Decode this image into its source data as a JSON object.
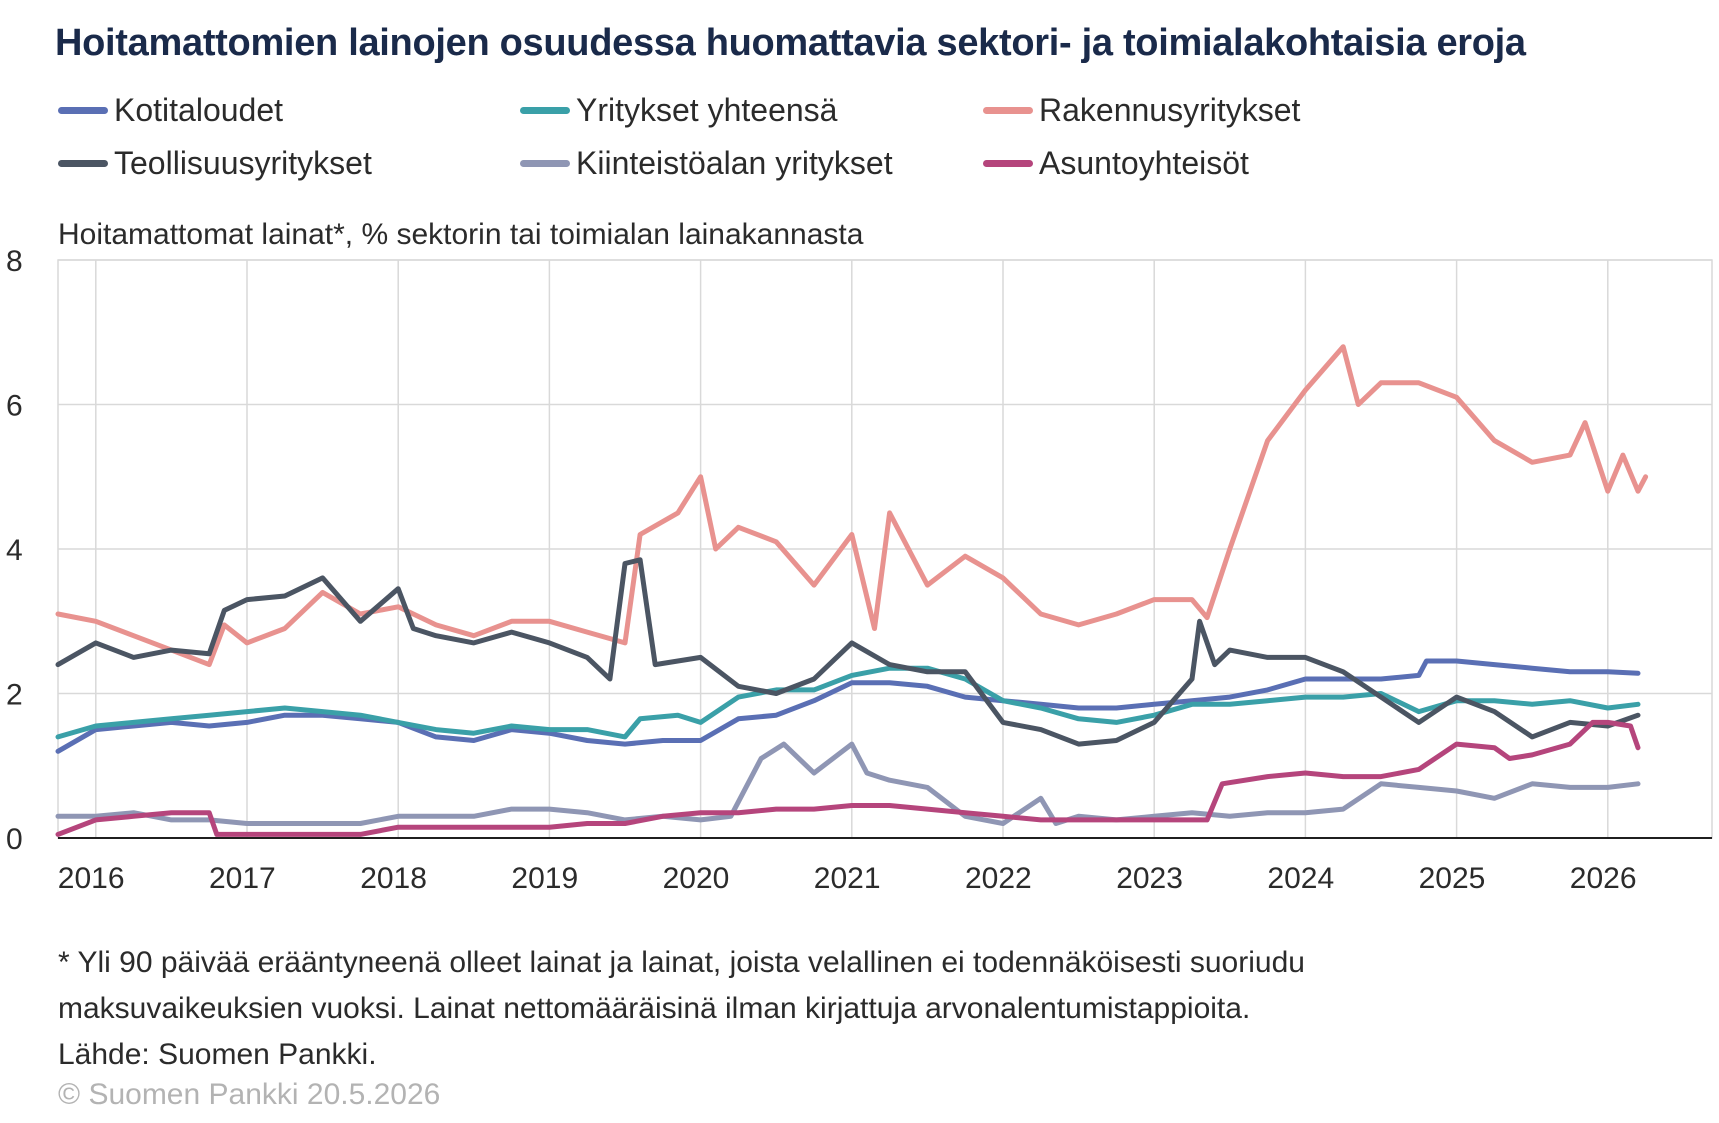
{
  "title": "Hoitamattomien lainojen osuudessa huomattavia sektori- ja toimialakohtaisia eroja",
  "ylabel": "Hoitamattomat lainat*, % sektorin tai toimialan lainakannasta",
  "footnote": {
    "line1": "* Yli 90 päivää erääntyneenä olleet lainat ja lainat, joista velallinen ei todennäköisesti suoriudu",
    "line2": "maksuvaikeuksien vuoksi. Lainat nettomääräisinä ilman kirjattuja arvonalentumistappioita.",
    "line3": "Lähde: Suomen Pankki."
  },
  "copyright": "© Suomen Pankki 20.5.2026",
  "chart_data": {
    "type": "line",
    "title": "Hoitamattomien lainojen osuudessa huomattavia sektori- ja toimialakohtaisia eroja",
    "ylabel": "Hoitamattomat lainat*, % sektorin tai toimialan lainakannasta",
    "xlabel": "",
    "ylim": [
      0,
      8
    ],
    "yticks": [
      "0",
      "2",
      "4",
      "6",
      "8"
    ],
    "xticks": [
      "2016",
      "2017",
      "2018",
      "2019",
      "2020",
      "2021",
      "2022",
      "2023",
      "2024",
      "2025",
      "2026"
    ],
    "grid": true,
    "legend_position": "top",
    "series": [
      {
        "name": "Kotitaloudet",
        "color": "#5a6fb4",
        "points": [
          [
            2015.75,
            1.2
          ],
          [
            2016.0,
            1.5
          ],
          [
            2016.25,
            1.55
          ],
          [
            2016.5,
            1.6
          ],
          [
            2016.75,
            1.55
          ],
          [
            2017.0,
            1.6
          ],
          [
            2017.25,
            1.7
          ],
          [
            2017.5,
            1.7
          ],
          [
            2017.75,
            1.65
          ],
          [
            2018.0,
            1.6
          ],
          [
            2018.25,
            1.4
          ],
          [
            2018.5,
            1.35
          ],
          [
            2018.75,
            1.5
          ],
          [
            2019.0,
            1.45
          ],
          [
            2019.25,
            1.35
          ],
          [
            2019.5,
            1.3
          ],
          [
            2019.75,
            1.35
          ],
          [
            2020.0,
            1.35
          ],
          [
            2020.25,
            1.65
          ],
          [
            2020.5,
            1.7
          ],
          [
            2020.75,
            1.9
          ],
          [
            2021.0,
            2.15
          ],
          [
            2021.25,
            2.15
          ],
          [
            2021.5,
            2.1
          ],
          [
            2021.75,
            1.95
          ],
          [
            2022.0,
            1.9
          ],
          [
            2022.25,
            1.85
          ],
          [
            2022.5,
            1.8
          ],
          [
            2022.75,
            1.8
          ],
          [
            2023.0,
            1.85
          ],
          [
            2023.25,
            1.9
          ],
          [
            2023.5,
            1.95
          ],
          [
            2023.75,
            2.05
          ],
          [
            2024.0,
            2.2
          ],
          [
            2024.25,
            2.2
          ],
          [
            2024.5,
            2.2
          ],
          [
            2024.75,
            2.25
          ],
          [
            2024.8,
            2.45
          ],
          [
            2025.0,
            2.45
          ],
          [
            2025.25,
            2.4
          ],
          [
            2025.5,
            2.35
          ],
          [
            2025.75,
            2.3
          ],
          [
            2026.0,
            2.3
          ],
          [
            2026.2,
            2.28
          ]
        ]
      },
      {
        "name": "Yritykset yhteensä",
        "color": "#3aa0a8",
        "points": [
          [
            2015.75,
            1.4
          ],
          [
            2016.0,
            1.55
          ],
          [
            2016.25,
            1.6
          ],
          [
            2016.5,
            1.65
          ],
          [
            2016.75,
            1.7
          ],
          [
            2017.0,
            1.75
          ],
          [
            2017.25,
            1.8
          ],
          [
            2017.5,
            1.75
          ],
          [
            2017.75,
            1.7
          ],
          [
            2018.0,
            1.6
          ],
          [
            2018.25,
            1.5
          ],
          [
            2018.5,
            1.45
          ],
          [
            2018.75,
            1.55
          ],
          [
            2019.0,
            1.5
          ],
          [
            2019.25,
            1.5
          ],
          [
            2019.5,
            1.4
          ],
          [
            2019.6,
            1.65
          ],
          [
            2019.85,
            1.7
          ],
          [
            2020.0,
            1.6
          ],
          [
            2020.25,
            1.95
          ],
          [
            2020.5,
            2.05
          ],
          [
            2020.75,
            2.05
          ],
          [
            2021.0,
            2.25
          ],
          [
            2021.25,
            2.35
          ],
          [
            2021.5,
            2.35
          ],
          [
            2021.75,
            2.2
          ],
          [
            2022.0,
            1.9
          ],
          [
            2022.25,
            1.8
          ],
          [
            2022.5,
            1.65
          ],
          [
            2022.75,
            1.6
          ],
          [
            2023.0,
            1.7
          ],
          [
            2023.25,
            1.85
          ],
          [
            2023.5,
            1.85
          ],
          [
            2023.75,
            1.9
          ],
          [
            2024.0,
            1.95
          ],
          [
            2024.25,
            1.95
          ],
          [
            2024.5,
            2.0
          ],
          [
            2024.75,
            1.75
          ],
          [
            2025.0,
            1.9
          ],
          [
            2025.25,
            1.9
          ],
          [
            2025.5,
            1.85
          ],
          [
            2025.75,
            1.9
          ],
          [
            2026.0,
            1.8
          ],
          [
            2026.2,
            1.85
          ]
        ]
      },
      {
        "name": "Rakennusyritykset",
        "color": "#e8928f",
        "points": [
          [
            2015.75,
            3.1
          ],
          [
            2016.0,
            3.0
          ],
          [
            2016.25,
            2.8
          ],
          [
            2016.5,
            2.6
          ],
          [
            2016.75,
            2.4
          ],
          [
            2016.85,
            2.95
          ],
          [
            2017.0,
            2.7
          ],
          [
            2017.25,
            2.9
          ],
          [
            2017.5,
            3.4
          ],
          [
            2017.75,
            3.1
          ],
          [
            2018.0,
            3.2
          ],
          [
            2018.25,
            2.95
          ],
          [
            2018.5,
            2.8
          ],
          [
            2018.75,
            3.0
          ],
          [
            2019.0,
            3.0
          ],
          [
            2019.25,
            2.85
          ],
          [
            2019.5,
            2.7
          ],
          [
            2019.6,
            4.2
          ],
          [
            2019.85,
            4.5
          ],
          [
            2020.0,
            5.0
          ],
          [
            2020.1,
            4.0
          ],
          [
            2020.25,
            4.3
          ],
          [
            2020.5,
            4.1
          ],
          [
            2020.75,
            3.5
          ],
          [
            2021.0,
            4.2
          ],
          [
            2021.15,
            2.9
          ],
          [
            2021.25,
            4.5
          ],
          [
            2021.5,
            3.5
          ],
          [
            2021.75,
            3.9
          ],
          [
            2022.0,
            3.6
          ],
          [
            2022.25,
            3.1
          ],
          [
            2022.5,
            2.95
          ],
          [
            2022.75,
            3.1
          ],
          [
            2023.0,
            3.3
          ],
          [
            2023.25,
            3.3
          ],
          [
            2023.35,
            3.05
          ],
          [
            2023.5,
            4.0
          ],
          [
            2023.75,
            5.5
          ],
          [
            2024.0,
            6.2
          ],
          [
            2024.25,
            6.8
          ],
          [
            2024.35,
            6.0
          ],
          [
            2024.5,
            6.3
          ],
          [
            2024.75,
            6.3
          ],
          [
            2025.0,
            6.1
          ],
          [
            2025.25,
            5.5
          ],
          [
            2025.5,
            5.2
          ],
          [
            2025.75,
            5.3
          ],
          [
            2025.85,
            5.75
          ],
          [
            2026.0,
            4.8
          ],
          [
            2026.1,
            5.3
          ],
          [
            2026.2,
            4.8
          ],
          [
            2026.25,
            5.0
          ]
        ]
      },
      {
        "name": "Teollisuusyritykset",
        "color": "#4b5563",
        "points": [
          [
            2015.75,
            2.4
          ],
          [
            2016.0,
            2.7
          ],
          [
            2016.25,
            2.5
          ],
          [
            2016.5,
            2.6
          ],
          [
            2016.75,
            2.55
          ],
          [
            2016.85,
            3.15
          ],
          [
            2017.0,
            3.3
          ],
          [
            2017.25,
            3.35
          ],
          [
            2017.5,
            3.6
          ],
          [
            2017.75,
            3.0
          ],
          [
            2018.0,
            3.45
          ],
          [
            2018.1,
            2.9
          ],
          [
            2018.25,
            2.8
          ],
          [
            2018.5,
            2.7
          ],
          [
            2018.75,
            2.85
          ],
          [
            2019.0,
            2.7
          ],
          [
            2019.25,
            2.5
          ],
          [
            2019.4,
            2.2
          ],
          [
            2019.5,
            3.8
          ],
          [
            2019.6,
            3.85
          ],
          [
            2019.7,
            2.4
          ],
          [
            2019.85,
            2.45
          ],
          [
            2020.0,
            2.5
          ],
          [
            2020.25,
            2.1
          ],
          [
            2020.5,
            2.0
          ],
          [
            2020.75,
            2.2
          ],
          [
            2021.0,
            2.7
          ],
          [
            2021.25,
            2.4
          ],
          [
            2021.5,
            2.3
          ],
          [
            2021.75,
            2.3
          ],
          [
            2022.0,
            1.6
          ],
          [
            2022.25,
            1.5
          ],
          [
            2022.5,
            1.3
          ],
          [
            2022.75,
            1.35
          ],
          [
            2023.0,
            1.6
          ],
          [
            2023.25,
            2.2
          ],
          [
            2023.3,
            3.0
          ],
          [
            2023.4,
            2.4
          ],
          [
            2023.5,
            2.6
          ],
          [
            2023.75,
            2.5
          ],
          [
            2024.0,
            2.5
          ],
          [
            2024.25,
            2.3
          ],
          [
            2024.5,
            1.95
          ],
          [
            2024.75,
            1.6
          ],
          [
            2025.0,
            1.95
          ],
          [
            2025.25,
            1.75
          ],
          [
            2025.5,
            1.4
          ],
          [
            2025.75,
            1.6
          ],
          [
            2026.0,
            1.55
          ],
          [
            2026.2,
            1.7
          ]
        ]
      },
      {
        "name": "Kiinteistöalan yritykset",
        "color": "#8f96b4",
        "points": [
          [
            2015.75,
            0.3
          ],
          [
            2016.0,
            0.3
          ],
          [
            2016.25,
            0.35
          ],
          [
            2016.5,
            0.25
          ],
          [
            2016.75,
            0.25
          ],
          [
            2017.0,
            0.2
          ],
          [
            2017.25,
            0.2
          ],
          [
            2017.5,
            0.2
          ],
          [
            2017.75,
            0.2
          ],
          [
            2018.0,
            0.3
          ],
          [
            2018.25,
            0.3
          ],
          [
            2018.5,
            0.3
          ],
          [
            2018.75,
            0.4
          ],
          [
            2019.0,
            0.4
          ],
          [
            2019.25,
            0.35
          ],
          [
            2019.5,
            0.25
          ],
          [
            2019.75,
            0.3
          ],
          [
            2020.0,
            0.25
          ],
          [
            2020.2,
            0.3
          ],
          [
            2020.4,
            1.1
          ],
          [
            2020.55,
            1.3
          ],
          [
            2020.75,
            0.9
          ],
          [
            2021.0,
            1.3
          ],
          [
            2021.1,
            0.9
          ],
          [
            2021.25,
            0.8
          ],
          [
            2021.5,
            0.7
          ],
          [
            2021.75,
            0.3
          ],
          [
            2022.0,
            0.2
          ],
          [
            2022.25,
            0.55
          ],
          [
            2022.35,
            0.2
          ],
          [
            2022.5,
            0.3
          ],
          [
            2022.75,
            0.25
          ],
          [
            2023.0,
            0.3
          ],
          [
            2023.25,
            0.35
          ],
          [
            2023.5,
            0.3
          ],
          [
            2023.75,
            0.35
          ],
          [
            2024.0,
            0.35
          ],
          [
            2024.25,
            0.4
          ],
          [
            2024.5,
            0.75
          ],
          [
            2024.75,
            0.7
          ],
          [
            2025.0,
            0.65
          ],
          [
            2025.25,
            0.55
          ],
          [
            2025.5,
            0.75
          ],
          [
            2025.75,
            0.7
          ],
          [
            2026.0,
            0.7
          ],
          [
            2026.2,
            0.75
          ]
        ]
      },
      {
        "name": "Asuntoyhteisöt",
        "color": "#b5457c",
        "points": [
          [
            2015.75,
            0.05
          ],
          [
            2016.0,
            0.25
          ],
          [
            2016.25,
            0.3
          ],
          [
            2016.5,
            0.35
          ],
          [
            2016.75,
            0.35
          ],
          [
            2016.8,
            0.05
          ],
          [
            2017.0,
            0.05
          ],
          [
            2017.25,
            0.05
          ],
          [
            2017.5,
            0.05
          ],
          [
            2017.75,
            0.05
          ],
          [
            2018.0,
            0.15
          ],
          [
            2018.25,
            0.15
          ],
          [
            2018.5,
            0.15
          ],
          [
            2018.75,
            0.15
          ],
          [
            2019.0,
            0.15
          ],
          [
            2019.25,
            0.2
          ],
          [
            2019.5,
            0.2
          ],
          [
            2019.75,
            0.3
          ],
          [
            2020.0,
            0.35
          ],
          [
            2020.25,
            0.35
          ],
          [
            2020.5,
            0.4
          ],
          [
            2020.75,
            0.4
          ],
          [
            2021.0,
            0.45
          ],
          [
            2021.25,
            0.45
          ],
          [
            2021.5,
            0.4
          ],
          [
            2021.75,
            0.35
          ],
          [
            2022.0,
            0.3
          ],
          [
            2022.25,
            0.25
          ],
          [
            2022.5,
            0.25
          ],
          [
            2022.75,
            0.25
          ],
          [
            2023.0,
            0.25
          ],
          [
            2023.25,
            0.25
          ],
          [
            2023.35,
            0.25
          ],
          [
            2023.45,
            0.75
          ],
          [
            2023.75,
            0.85
          ],
          [
            2024.0,
            0.9
          ],
          [
            2024.25,
            0.85
          ],
          [
            2024.5,
            0.85
          ],
          [
            2024.75,
            0.95
          ],
          [
            2025.0,
            1.3
          ],
          [
            2025.25,
            1.25
          ],
          [
            2025.35,
            1.1
          ],
          [
            2025.5,
            1.15
          ],
          [
            2025.75,
            1.3
          ],
          [
            2025.9,
            1.6
          ],
          [
            2026.0,
            1.6
          ],
          [
            2026.15,
            1.55
          ],
          [
            2026.2,
            1.25
          ]
        ]
      }
    ]
  }
}
